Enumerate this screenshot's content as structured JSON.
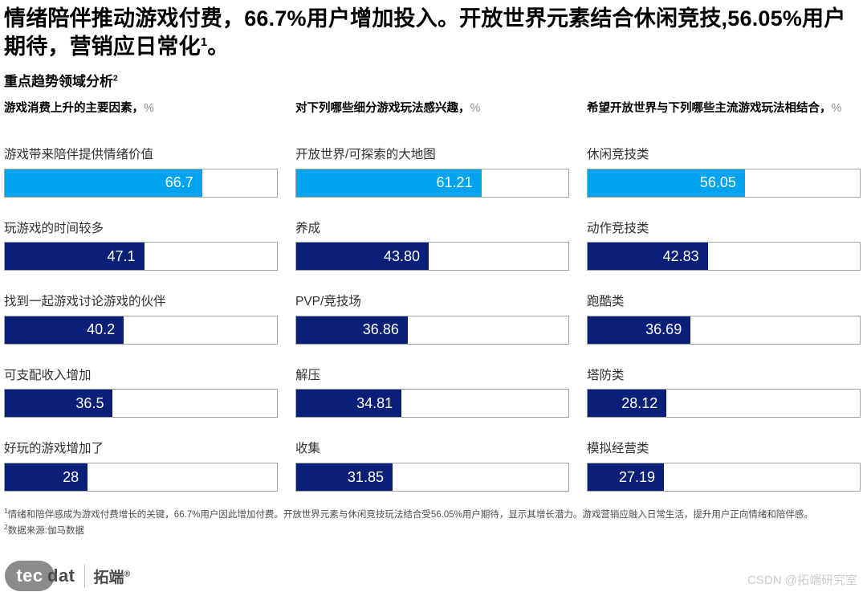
{
  "title": {
    "text": "情绪陪伴推动游戏付费，66.7%用户增加投入。开放世界元素结合休闲竞技,56.05%用户期待，营销应日常化",
    "sup": "1",
    "suffix": "。"
  },
  "section": {
    "text": "重点趋势领域分析",
    "sup": "2"
  },
  "colors": {
    "highlight_bar": "#00a3f0",
    "primary_bar": "#0a1f78",
    "track_border": "#a3a3a3",
    "value_text": "#ffffff"
  },
  "chart_data": [
    {
      "type": "bar",
      "orientation": "horizontal",
      "title": "游戏消费上升的主要因素，",
      "unit": "%",
      "categories": [
        "游戏带来陪伴提供情绪价值",
        "玩游戏的时间较多",
        "找到一起游戏讨论游戏的伙伴",
        "可支配收入增加",
        "好玩的游戏增加了"
      ],
      "values": [
        66.7,
        47.1,
        40.2,
        36.5,
        28
      ],
      "value_labels": [
        "66.7",
        "47.1",
        "40.2",
        "36.5",
        "28"
      ],
      "highlight_index": 0,
      "xlim": [
        0,
        92
      ],
      "grid": false,
      "legend": "none"
    },
    {
      "type": "bar",
      "orientation": "horizontal",
      "title": "对下列哪些细分游戏玩法感兴趣，",
      "unit": "%",
      "categories": [
        "开放世界/可探索的大地图",
        "养成",
        "PVP/竞技场",
        "解压",
        "收集"
      ],
      "values": [
        61.21,
        43.8,
        36.86,
        34.81,
        31.85
      ],
      "value_labels": [
        "61.21",
        "43.80",
        "36.86",
        "34.81",
        "31.85"
      ],
      "highlight_index": 0,
      "xlim": [
        0,
        90
      ],
      "grid": false,
      "legend": "none"
    },
    {
      "type": "bar",
      "orientation": "horizontal",
      "title": "希望开放世界与下列哪些主流游戏玩法相结合，",
      "unit": "%",
      "categories": [
        "休闲竞技类",
        "动作竞技类",
        "跑酷类",
        "塔防类",
        "模拟经营类"
      ],
      "values": [
        56.05,
        42.83,
        36.69,
        28.12,
        27.19
      ],
      "value_labels": [
        "56.05",
        "42.83",
        "36.69",
        "28.12",
        "27.19"
      ],
      "highlight_index": 0,
      "xlim": [
        0,
        97
      ],
      "grid": false,
      "legend": "none"
    }
  ],
  "footnotes": [
    {
      "sup": "1",
      "text": "情绪和陪伴感成为游戏付费增长的关键，66.7%用户因此增加付费。开放世界元素与休闲竞技玩法结合受56.05%用户期待，显示其增长潜力。游戏营销应融入日常生活，提升用户正向情绪和陪伴感。"
    },
    {
      "sup": "2",
      "text": "数据来源:伽马数据"
    }
  ],
  "logo": {
    "tec": "tec",
    "dat": "dat",
    "brand": "拓端",
    "reg": "®"
  },
  "watermark": "CSDN @拓端研究室"
}
